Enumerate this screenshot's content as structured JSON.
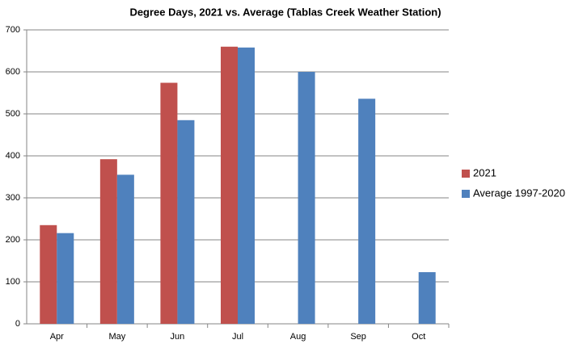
{
  "chart_data": {
    "type": "bar",
    "title": "Degree Days, 2021 vs. Average (Tablas Creek Weather Station)",
    "categories": [
      "Apr",
      "May",
      "Jun",
      "Jul",
      "Aug",
      "Sep",
      "Oct"
    ],
    "series": [
      {
        "name": "2021",
        "color": "#c0504d",
        "values": [
          235,
          392,
          574,
          660,
          null,
          null,
          null
        ]
      },
      {
        "name": "Average 1997-2020",
        "color": "#4f81bd",
        "values": [
          216,
          355,
          485,
          658,
          600,
          536,
          123
        ]
      }
    ],
    "ylim": [
      0,
      700
    ],
    "yticks": [
      0,
      100,
      200,
      300,
      400,
      500,
      600,
      700
    ],
    "grid": true,
    "legend": "right"
  }
}
